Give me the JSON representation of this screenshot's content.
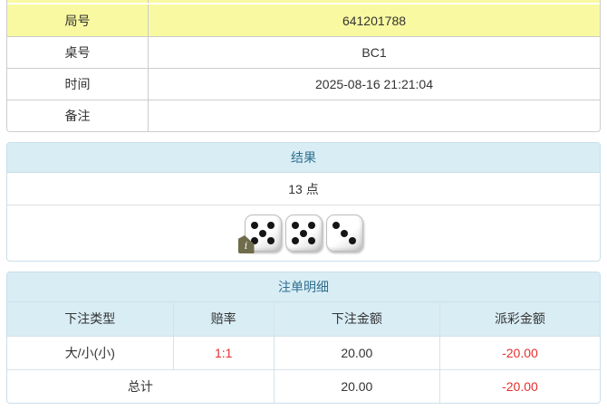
{
  "colors": {
    "highlight_yellow": "#f9f9a1",
    "panel_header_bg": "#d9edf5",
    "panel_header_text": "#31708f",
    "negative_red": "#e62e2e",
    "table_border": "#cccccc",
    "panel_border": "#c8dfe9",
    "inner_border": "#d6e2e9"
  },
  "round_info": {
    "rows": [
      {
        "label": "局号",
        "value": "641201788"
      },
      {
        "label": "桌号",
        "value": "BC1"
      },
      {
        "label": "时间",
        "value": "2025-08-16 21:21:04"
      },
      {
        "label": "备注",
        "value": ""
      }
    ]
  },
  "result": {
    "title": "结果",
    "points": "13 点",
    "dice": [
      5,
      5,
      3
    ],
    "broken_image_glyph": "i"
  },
  "bet_details": {
    "title": "注单明细",
    "columns": [
      "下注类型",
      "赔率",
      "下注金额",
      "派彩金额"
    ],
    "rows": [
      {
        "bet_type": "大/小(小)",
        "odds": "1:1",
        "bet_amount": "20.00",
        "payout_amount": "-20.00"
      }
    ],
    "total": {
      "label": "总计",
      "bet_amount": "20.00",
      "payout_amount": "-20.00"
    }
  }
}
